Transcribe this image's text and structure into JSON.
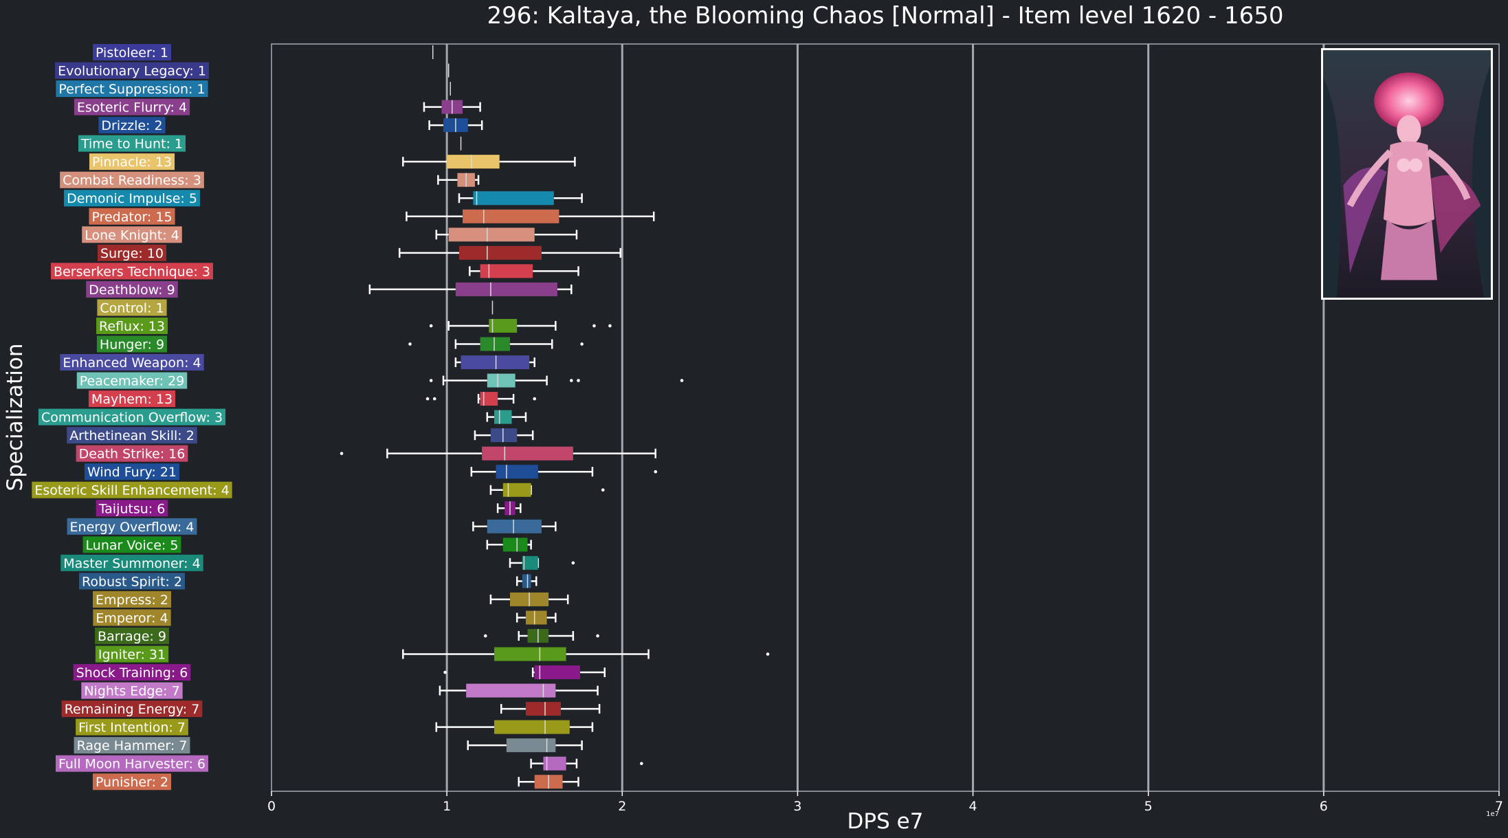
{
  "chart_data": {
    "type": "box",
    "title": "296: Kaltaya, the Blooming Chaos [Normal] - Item level 1620 - 1650",
    "xlabel": "DPS e7",
    "ylabel": "Specialization",
    "x_offset_label": "1e7",
    "xlim": [
      0,
      7
    ],
    "x_ticks": [
      "0",
      "1",
      "2",
      "3",
      "4",
      "5",
      "6",
      "7"
    ],
    "grid_x": [
      1,
      2,
      3,
      4,
      5,
      6
    ],
    "series": [
      {
        "label": "Pistoleer: 1",
        "color": "#3b3b9a",
        "min": 0.92,
        "q1": 0.92,
        "median": 0.92,
        "q3": 0.92,
        "max": 0.92,
        "outliers": []
      },
      {
        "label": "Evolutionary Legacy: 1",
        "color": "#3a3a8c",
        "min": 1.01,
        "q1": 1.01,
        "median": 1.01,
        "q3": 1.01,
        "max": 1.01,
        "outliers": []
      },
      {
        "label": "Perfect Suppression: 1",
        "color": "#1f77a8",
        "min": 1.02,
        "q1": 1.02,
        "median": 1.02,
        "q3": 1.02,
        "max": 1.02,
        "outliers": []
      },
      {
        "label": "Esoteric Flurry: 4",
        "color": "#8a3f8c",
        "min": 0.87,
        "q1": 0.97,
        "median": 1.03,
        "q3": 1.09,
        "max": 1.19,
        "outliers": []
      },
      {
        "label": "Drizzle: 2",
        "color": "#1f4e99",
        "min": 0.9,
        "q1": 0.98,
        "median": 1.05,
        "q3": 1.12,
        "max": 1.2,
        "outliers": []
      },
      {
        "label": "Time to Hunt: 1",
        "color": "#2a9d8f",
        "min": 1.08,
        "q1": 1.08,
        "median": 1.08,
        "q3": 1.08,
        "max": 1.08,
        "outliers": []
      },
      {
        "label": "Pinnacle: 13",
        "color": "#e9c46a",
        "min": 0.75,
        "q1": 1.0,
        "median": 1.14,
        "q3": 1.3,
        "max": 1.73,
        "outliers": []
      },
      {
        "label": "Combat Readiness: 3",
        "color": "#d4907a",
        "min": 0.95,
        "q1": 1.06,
        "median": 1.11,
        "q3": 1.16,
        "max": 1.18,
        "outliers": []
      },
      {
        "label": "Demonic Impulse: 5",
        "color": "#168aad",
        "min": 1.07,
        "q1": 1.15,
        "median": 1.17,
        "q3": 1.61,
        "max": 1.77,
        "outliers": []
      },
      {
        "label": "Predator: 15",
        "color": "#cc6b4e",
        "min": 0.77,
        "q1": 1.09,
        "median": 1.21,
        "q3": 1.64,
        "max": 2.18,
        "outliers": []
      },
      {
        "label": "Lone Knight: 4",
        "color": "#d8907e",
        "min": 0.94,
        "q1": 1.01,
        "median": 1.23,
        "q3": 1.5,
        "max": 1.74,
        "outliers": []
      },
      {
        "label": "Surge: 10",
        "color": "#9e2b2b",
        "min": 0.73,
        "q1": 1.07,
        "median": 1.23,
        "q3": 1.54,
        "max": 1.99,
        "outliers": []
      },
      {
        "label": "Berserkers Technique: 3",
        "color": "#d43f4e",
        "min": 1.13,
        "q1": 1.19,
        "median": 1.24,
        "q3": 1.49,
        "max": 1.75,
        "outliers": []
      },
      {
        "label": "Deathblow: 9",
        "color": "#8a3f8c",
        "min": 0.56,
        "q1": 1.05,
        "median": 1.25,
        "q3": 1.63,
        "max": 1.71,
        "outliers": []
      },
      {
        "label": "Control: 1",
        "color": "#b5a642",
        "min": 1.26,
        "q1": 1.26,
        "median": 1.26,
        "q3": 1.26,
        "max": 1.26,
        "outliers": []
      },
      {
        "label": "Reflux: 13",
        "color": "#5a9a1a",
        "min": 1.01,
        "q1": 1.24,
        "median": 1.26,
        "q3": 1.4,
        "max": 1.62,
        "outliers": [
          0.91,
          1.84,
          1.93
        ]
      },
      {
        "label": "Hunger: 9",
        "color": "#2a8a2a",
        "min": 1.05,
        "q1": 1.19,
        "median": 1.27,
        "q3": 1.36,
        "max": 1.6,
        "outliers": [
          0.79,
          1.77
        ]
      },
      {
        "label": "Enhanced Weapon: 4",
        "color": "#4a4aa0",
        "min": 1.05,
        "q1": 1.08,
        "median": 1.28,
        "q3": 1.47,
        "max": 1.5,
        "outliers": []
      },
      {
        "label": "Peacemaker: 29",
        "color": "#6fc2b6",
        "min": 0.98,
        "q1": 1.23,
        "median": 1.29,
        "q3": 1.39,
        "max": 1.57,
        "outliers": [
          0.91,
          1.71,
          1.75,
          2.34
        ]
      },
      {
        "label": "Mayhem: 13",
        "color": "#d43f4e",
        "min": 1.18,
        "q1": 1.19,
        "median": 1.21,
        "q3": 1.29,
        "max": 1.38,
        "outliers": [
          0.89,
          0.93,
          1.5
        ]
      },
      {
        "label": "Communication Overflow: 3",
        "color": "#2a9d8f",
        "min": 1.23,
        "q1": 1.27,
        "median": 1.3,
        "q3": 1.37,
        "max": 1.45,
        "outliers": []
      },
      {
        "label": "Arthetinean Skill: 2",
        "color": "#3c4a8a",
        "min": 1.16,
        "q1": 1.25,
        "median": 1.32,
        "q3": 1.4,
        "max": 1.49,
        "outliers": []
      },
      {
        "label": "Death Strike: 16",
        "color": "#c2456a",
        "min": 0.66,
        "q1": 1.2,
        "median": 1.33,
        "q3": 1.72,
        "max": 2.19,
        "outliers": [
          0.4
        ]
      },
      {
        "label": "Wind Fury: 21",
        "color": "#1f4e99",
        "min": 1.14,
        "q1": 1.28,
        "median": 1.34,
        "q3": 1.52,
        "max": 1.83,
        "outliers": [
          2.19
        ]
      },
      {
        "label": "Esoteric Skill Enhancement: 4",
        "color": "#9a9a1a",
        "min": 1.25,
        "q1": 1.32,
        "median": 1.35,
        "q3": 1.48,
        "max": 1.48,
        "outliers": [
          1.89
        ]
      },
      {
        "label": "Taijutsu: 6",
        "color": "#8a1a8a",
        "min": 1.29,
        "q1": 1.33,
        "median": 1.36,
        "q3": 1.39,
        "max": 1.42,
        "outliers": []
      },
      {
        "label": "Energy Overflow: 4",
        "color": "#3a6a9a",
        "min": 1.15,
        "q1": 1.23,
        "median": 1.38,
        "q3": 1.54,
        "max": 1.62,
        "outliers": []
      },
      {
        "label": "Lunar Voice: 5",
        "color": "#1a8a1a",
        "min": 1.23,
        "q1": 1.32,
        "median": 1.4,
        "q3": 1.46,
        "max": 1.48,
        "outliers": []
      },
      {
        "label": "Master Summoner: 4",
        "color": "#1a8a7a",
        "min": 1.36,
        "q1": 1.43,
        "median": 1.44,
        "q3": 1.52,
        "max": 1.52,
        "outliers": [
          1.72
        ]
      },
      {
        "label": "Robust Spirit: 2",
        "color": "#2a5a8a",
        "min": 1.4,
        "q1": 1.43,
        "median": 1.46,
        "q3": 1.48,
        "max": 1.51,
        "outliers": []
      },
      {
        "label": "Empress: 2",
        "color": "#a0862a",
        "min": 1.25,
        "q1": 1.36,
        "median": 1.47,
        "q3": 1.58,
        "max": 1.69,
        "outliers": []
      },
      {
        "label": "Emperor: 4",
        "color": "#a0862a",
        "min": 1.4,
        "q1": 1.45,
        "median": 1.5,
        "q3": 1.57,
        "max": 1.62,
        "outliers": []
      },
      {
        "label": "Barrage: 9",
        "color": "#3a6a1a",
        "min": 1.41,
        "q1": 1.46,
        "median": 1.52,
        "q3": 1.58,
        "max": 1.72,
        "outliers": [
          1.22,
          1.86
        ]
      },
      {
        "label": "Igniter: 31",
        "color": "#5a9a1a",
        "min": 0.75,
        "q1": 1.27,
        "median": 1.53,
        "q3": 1.68,
        "max": 2.15,
        "outliers": [
          2.83
        ]
      },
      {
        "label": "Shock Training: 6",
        "color": "#8a1a8a",
        "min": 1.49,
        "q1": 1.5,
        "median": 1.53,
        "q3": 1.76,
        "max": 1.9,
        "outliers": [
          0.99
        ]
      },
      {
        "label": "Nights Edge: 7",
        "color": "#c27ac8",
        "min": 0.96,
        "q1": 1.11,
        "median": 1.55,
        "q3": 1.62,
        "max": 1.86,
        "outliers": []
      },
      {
        "label": "Remaining Energy: 7",
        "color": "#9e2b2b",
        "min": 1.31,
        "q1": 1.45,
        "median": 1.56,
        "q3": 1.65,
        "max": 1.87,
        "outliers": []
      },
      {
        "label": "First Intention: 7",
        "color": "#9a9a1a",
        "min": 0.94,
        "q1": 1.27,
        "median": 1.56,
        "q3": 1.7,
        "max": 1.83,
        "outliers": []
      },
      {
        "label": "Rage Hammer: 7",
        "color": "#7a8a92",
        "min": 1.12,
        "q1": 1.34,
        "median": 1.57,
        "q3": 1.62,
        "max": 1.77,
        "outliers": []
      },
      {
        "label": "Full Moon Harvester: 6",
        "color": "#b56ac0",
        "min": 1.48,
        "q1": 1.55,
        "median": 1.57,
        "q3": 1.68,
        "max": 1.74,
        "outliers": [
          2.11
        ]
      },
      {
        "label": "Punisher: 2",
        "color": "#cc6b4e",
        "min": 1.41,
        "q1": 1.5,
        "median": 1.58,
        "q3": 1.66,
        "max": 1.75,
        "outliers": []
      }
    ]
  }
}
